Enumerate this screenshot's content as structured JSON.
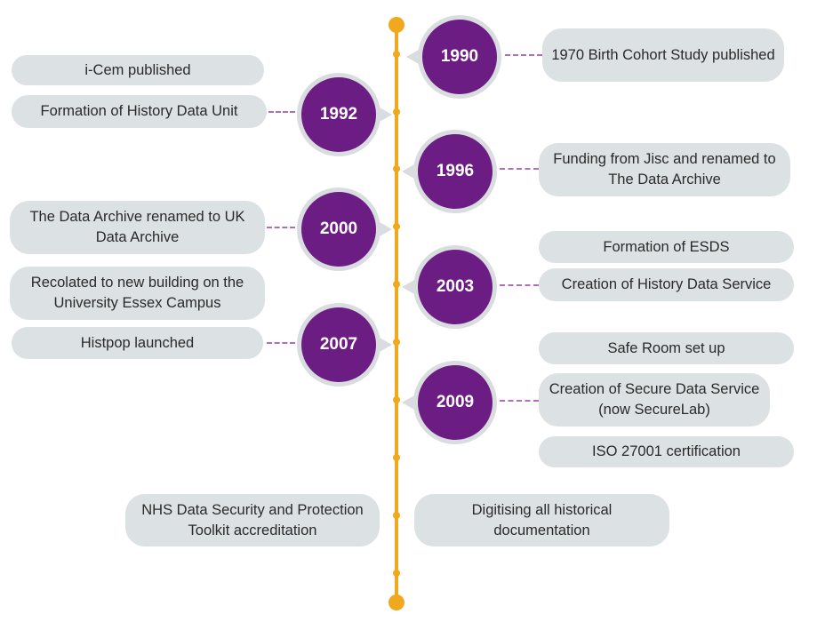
{
  "colors": {
    "accent": "#F0A81E",
    "node": "#6C1D83",
    "box": "#DCE1E3",
    "dash": "#B06DB8"
  },
  "years": [
    "1990",
    "1992",
    "1996",
    "2000",
    "2003",
    "2007",
    "2009"
  ],
  "events": {
    "e1990_birth_cohort": "1970 Birth Cohort Study published",
    "e1992_icem": "i-Cem published",
    "e1992_history_unit": "Formation of History Data Unit",
    "e1996_jisc": "Funding from Jisc and renamed to The Data Archive",
    "e2000_uk_archive": "The Data Archive renamed to UK Data Archive",
    "e2003_esds": "Formation of ESDS",
    "e2003_history_service": "Creation of History Data Service",
    "e2007_relocated": "Recolated to new building on the University Essex Campus",
    "e2007_histpop": "Histpop launched",
    "e2009_safe_room": "Safe Room set up",
    "e2009_secure_service": "Creation of Secure Data Service (now SecureLab)",
    "e2009_iso": "ISO 27001 certification",
    "nhs_toolkit": "NHS Data Security and Protection Toolkit accreditation",
    "digitising": "Digitising all historical documentation"
  }
}
